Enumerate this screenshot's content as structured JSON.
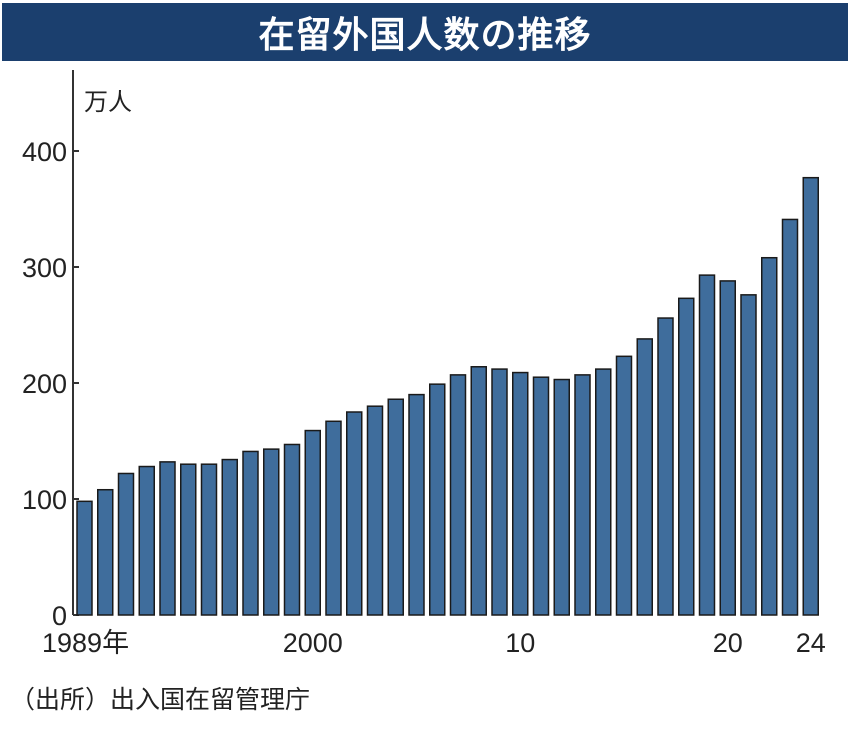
{
  "chart_data": {
    "type": "bar",
    "title": "在留外国人数の推移",
    "unit_label": "万人",
    "source": "（出所）出入国在留管理庁",
    "years": [
      1989,
      1990,
      1991,
      1992,
      1993,
      1994,
      1995,
      1996,
      1997,
      1998,
      1999,
      2000,
      2001,
      2002,
      2003,
      2004,
      2005,
      2006,
      2007,
      2008,
      2009,
      2010,
      2011,
      2012,
      2013,
      2014,
      2015,
      2016,
      2017,
      2018,
      2019,
      2020,
      2021,
      2022,
      2023,
      2024
    ],
    "values": [
      98,
      108,
      122,
      128,
      132,
      130,
      130,
      134,
      141,
      143,
      147,
      159,
      167,
      175,
      180,
      186,
      190,
      199,
      207,
      214,
      212,
      209,
      205,
      203,
      207,
      212,
      223,
      238,
      256,
      273,
      293,
      288,
      276,
      308,
      341,
      377
    ],
    "x_tick_labels": [
      {
        "year": 1989,
        "label": "1989年"
      },
      {
        "year": 2000,
        "label": "2000"
      },
      {
        "year": 2010,
        "label": "10"
      },
      {
        "year": 2020,
        "label": "20"
      },
      {
        "year": 2024,
        "label": "24"
      }
    ],
    "y_ticks": [
      0,
      100,
      200,
      300,
      400
    ],
    "ylim": [
      0,
      460
    ],
    "grid": false,
    "colors": {
      "bar": "#3f6d9c",
      "bar_outline": "#1a1a1a",
      "title_bg": "#1b3f6e"
    }
  }
}
